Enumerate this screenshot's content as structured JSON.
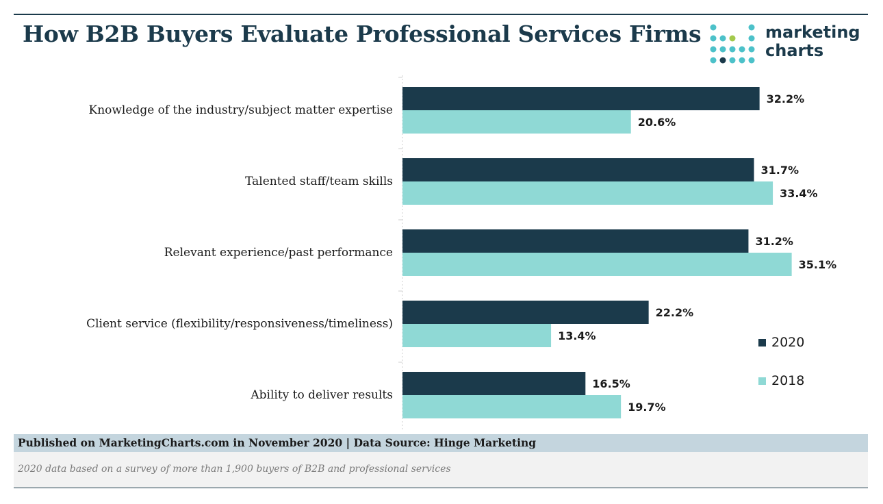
{
  "header": {
    "title": "How B2B Buyers Evaluate Professional Services Firms"
  },
  "logo": {
    "line1": "marketing",
    "line2": "charts",
    "colors": {
      "dark": "#1b3a4b",
      "teal": "#4cc1c9",
      "green": "#a3c94c"
    }
  },
  "chart_data": {
    "type": "bar",
    "orientation": "horizontal",
    "categories": [
      "Knowledge of the industry/subject matter expertise",
      "Talented staff/team skills",
      "Relevant experience/past performance",
      "Client service (flexibility/responsiveness/timeliness)",
      "Ability to deliver results"
    ],
    "series": [
      {
        "name": "2020",
        "color": "#1b3a4b",
        "values": [
          32.2,
          31.7,
          31.2,
          22.2,
          16.5
        ],
        "labels": [
          "32.2%",
          "31.7%",
          "31.2%",
          "22.2%",
          "16.5%"
        ]
      },
      {
        "name": "2018",
        "color": "#8fd9d5",
        "values": [
          20.6,
          33.4,
          35.1,
          13.4,
          19.7
        ],
        "labels": [
          "20.6%",
          "33.4%",
          "35.1%",
          "13.4%",
          "19.7%"
        ]
      }
    ],
    "xlim": [
      0,
      40
    ],
    "grid": false,
    "legend_position": "bottom-right"
  },
  "footer": {
    "published": "Published on MarketingCharts.com in November 2020 | Data Source: Hinge Marketing",
    "note": "2020 data based on a survey of more than 1,900 buyers of B2B and professional services"
  }
}
